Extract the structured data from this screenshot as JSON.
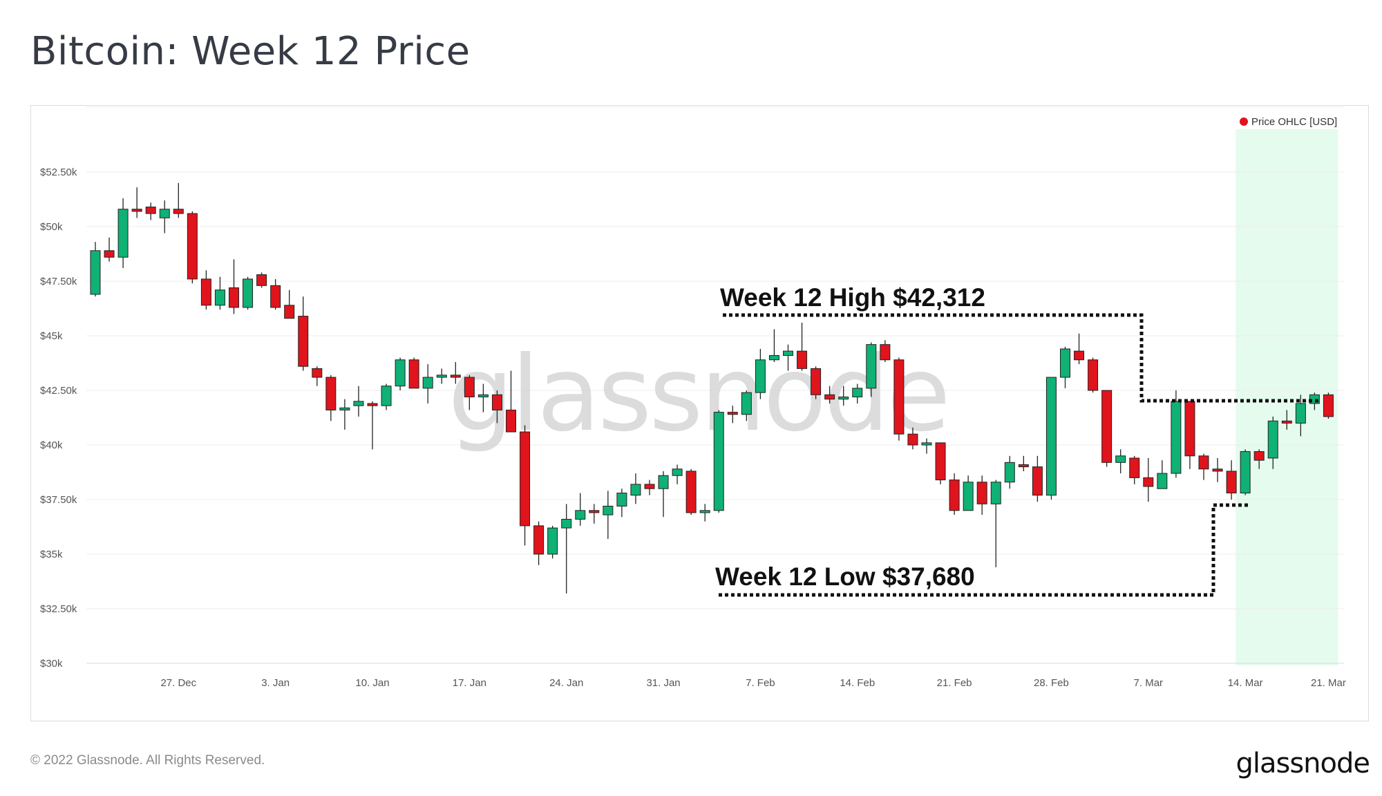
{
  "title": "Bitcoin: Week 12 Price",
  "footer": {
    "copyright": "© 2022 Glassnode. All Rights Reserved.",
    "logo": "glassnode"
  },
  "watermark": "glassnode",
  "colors": {
    "up": "#0fb175",
    "down": "#e0141c",
    "highlight": "#e5fbee",
    "grid": "#ececec",
    "legend_dot": "#e0141c"
  },
  "chart_data": {
    "type": "candlestick",
    "title": "Bitcoin: Week 12 Price",
    "legend": "Price OHLC [USD]",
    "legend_position": "top-right",
    "grid": true,
    "y_ticks": [
      "$30k",
      "$32.50k",
      "$35k",
      "$37.50k",
      "$40k",
      "$42.50k",
      "$45k",
      "$47.50k",
      "$50k",
      "$52.50k"
    ],
    "y_tick_values": [
      30000,
      32500,
      35000,
      37500,
      40000,
      42500,
      45000,
      47500,
      50000,
      52500
    ],
    "ylim": [
      30000,
      55500
    ],
    "x_ticks": [
      {
        "label": "27. Dec",
        "index": 6
      },
      {
        "label": "3. Jan",
        "index": 13
      },
      {
        "label": "10. Jan",
        "index": 20
      },
      {
        "label": "17. Jan",
        "index": 27
      },
      {
        "label": "24. Jan",
        "index": 34
      },
      {
        "label": "31. Jan",
        "index": 41
      },
      {
        "label": "7. Feb",
        "index": 48
      },
      {
        "label": "14. Feb",
        "index": 55
      },
      {
        "label": "21. Feb",
        "index": 62
      },
      {
        "label": "28. Feb",
        "index": 69
      },
      {
        "label": "7. Mar",
        "index": 76
      },
      {
        "label": "14. Mar",
        "index": 83
      },
      {
        "label": "21. Mar",
        "index": 89
      }
    ],
    "highlight_range": {
      "from_index": 83,
      "to_index": 90
    },
    "annotations": {
      "high": {
        "label": "Week 12 High $42,312",
        "value": 42312
      },
      "low": {
        "label": "Week 12 Low $37,680",
        "value": 37680
      }
    },
    "ohlc": [
      [
        46900,
        49300,
        46800,
        48900
      ],
      [
        48900,
        49500,
        48400,
        48600
      ],
      [
        48600,
        51300,
        48100,
        50800
      ],
      [
        50800,
        51800,
        50400,
        50700
      ],
      [
        50900,
        51100,
        50300,
        50600
      ],
      [
        50400,
        51200,
        49700,
        50800
      ],
      [
        50800,
        52000,
        50400,
        50600
      ],
      [
        50600,
        50700,
        47400,
        47600
      ],
      [
        47600,
        48000,
        46200,
        46400
      ],
      [
        46400,
        47700,
        46200,
        47100
      ],
      [
        47200,
        48500,
        46000,
        46300
      ],
      [
        46300,
        47700,
        46200,
        47600
      ],
      [
        47800,
        47900,
        47200,
        47300
      ],
      [
        47300,
        47600,
        46200,
        46300
      ],
      [
        46400,
        47100,
        45800,
        45800
      ],
      [
        45900,
        46800,
        43400,
        43600
      ],
      [
        43500,
        43600,
        42700,
        43100
      ],
      [
        43100,
        43200,
        41100,
        41600
      ],
      [
        41600,
        42100,
        40700,
        41700
      ],
      [
        41800,
        42700,
        41300,
        42000
      ],
      [
        41900,
        42000,
        39800,
        41800
      ],
      [
        41800,
        42800,
        41600,
        42700
      ],
      [
        42700,
        44000,
        42500,
        43900
      ],
      [
        43900,
        44000,
        42600,
        42600
      ],
      [
        42600,
        43700,
        41900,
        43100
      ],
      [
        43100,
        43500,
        42800,
        43200
      ],
      [
        43200,
        43800,
        42800,
        43100
      ],
      [
        43100,
        43200,
        41600,
        42200
      ],
      [
        42200,
        42800,
        41500,
        42300
      ],
      [
        42300,
        42500,
        41000,
        41600
      ],
      [
        41600,
        43400,
        40800,
        40600
      ],
      [
        40600,
        40900,
        35400,
        36300
      ],
      [
        36300,
        36500,
        34500,
        35000
      ],
      [
        35000,
        36300,
        34800,
        36200
      ],
      [
        36200,
        37300,
        33200,
        36600
      ],
      [
        36600,
        37800,
        36300,
        37000
      ],
      [
        37000,
        37300,
        36400,
        36900
      ],
      [
        36800,
        37900,
        35700,
        37200
      ],
      [
        37200,
        38000,
        36700,
        37800
      ],
      [
        37700,
        38700,
        37300,
        38200
      ],
      [
        38200,
        38400,
        37700,
        38000
      ],
      [
        38000,
        38800,
        36700,
        38600
      ],
      [
        38600,
        39100,
        38200,
        38900
      ],
      [
        38800,
        38900,
        36800,
        36900
      ],
      [
        36900,
        37300,
        36500,
        37000
      ],
      [
        37000,
        41600,
        36900,
        41500
      ],
      [
        41500,
        41800,
        41000,
        41400
      ],
      [
        41400,
        42500,
        41100,
        42400
      ],
      [
        42400,
        44400,
        42100,
        43900
      ],
      [
        43900,
        45300,
        43800,
        44100
      ],
      [
        44100,
        44600,
        43400,
        44300
      ],
      [
        44300,
        45600,
        43400,
        43500
      ],
      [
        43500,
        43600,
        42100,
        42300
      ],
      [
        42300,
        42700,
        41900,
        42100
      ],
      [
        42100,
        42700,
        41800,
        42200
      ],
      [
        42200,
        42800,
        41900,
        42600
      ],
      [
        42600,
        44700,
        42200,
        44600
      ],
      [
        44600,
        44800,
        43800,
        43900
      ],
      [
        43900,
        44000,
        40200,
        40500
      ],
      [
        40500,
        40800,
        39800,
        40000
      ],
      [
        40000,
        40300,
        39600,
        40100
      ],
      [
        40100,
        40100,
        38200,
        38400
      ],
      [
        38400,
        38700,
        36800,
        37000
      ],
      [
        37000,
        38600,
        37000,
        38300
      ],
      [
        38300,
        38600,
        36800,
        37300
      ],
      [
        37300,
        38400,
        34400,
        38300
      ],
      [
        38300,
        39500,
        38000,
        39200
      ],
      [
        39100,
        39500,
        38800,
        39000
      ],
      [
        39000,
        39500,
        37400,
        37700
      ],
      [
        37700,
        43100,
        37500,
        43100
      ],
      [
        43100,
        44500,
        42600,
        44400
      ],
      [
        44300,
        45100,
        43700,
        43900
      ],
      [
        43900,
        44000,
        42400,
        42500
      ],
      [
        42500,
        42500,
        39000,
        39200
      ],
      [
        39200,
        39800,
        38700,
        39500
      ],
      [
        39400,
        39500,
        38200,
        38500
      ],
      [
        38500,
        39400,
        37400,
        38100
      ],
      [
        38000,
        39300,
        38000,
        38700
      ],
      [
        38700,
        42500,
        38500,
        42000
      ],
      [
        42000,
        42000,
        38900,
        39500
      ],
      [
        39500,
        39600,
        38400,
        38900
      ],
      [
        38900,
        39400,
        38300,
        38800
      ],
      [
        38800,
        39300,
        37500,
        37800
      ],
      [
        37800,
        39800,
        37700,
        39700
      ],
      [
        39700,
        39800,
        38900,
        39300
      ],
      [
        39400,
        41300,
        38900,
        41100
      ],
      [
        41100,
        41600,
        40700,
        41000
      ],
      [
        41000,
        42300,
        40400,
        41900
      ],
      [
        41900,
        42400,
        41600,
        42300
      ],
      [
        42300,
        42400,
        41200,
        41300
      ]
    ]
  }
}
